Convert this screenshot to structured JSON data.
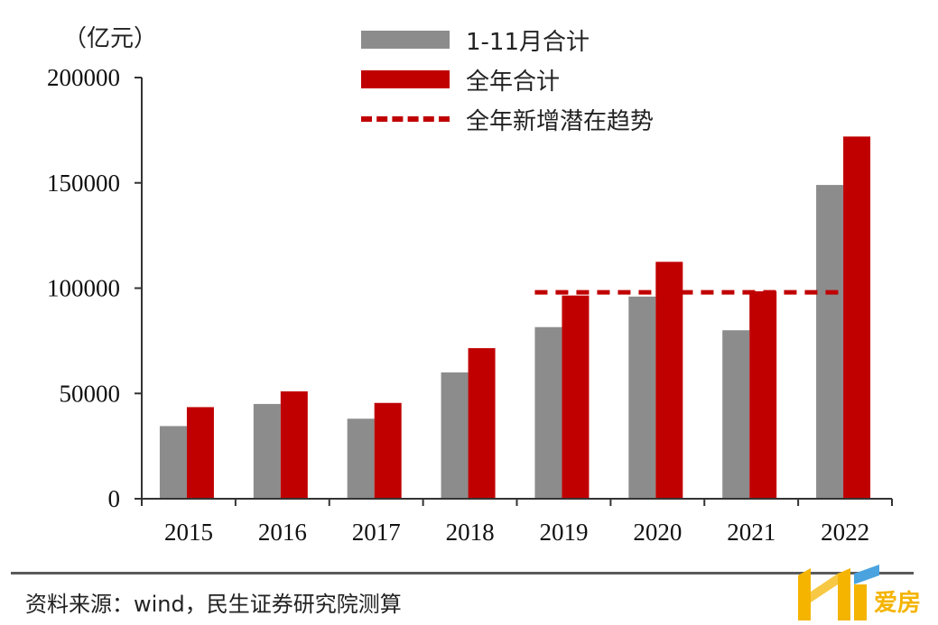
{
  "chart_data": {
    "type": "bar",
    "unit_label": "（亿元）",
    "categories": [
      "2015",
      "2016",
      "2017",
      "2018",
      "2019",
      "2020",
      "2021",
      "2022"
    ],
    "series": [
      {
        "name": "1-11月合计",
        "values": [
          34500,
          45000,
          38000,
          60000,
          81500,
          96000,
          80000,
          149000
        ],
        "color": "#8c8c8c"
      },
      {
        "name": "全年合计",
        "values": [
          43500,
          51000,
          45500,
          71500,
          96500,
          112500,
          98500,
          172000
        ],
        "color": "#c00000"
      }
    ],
    "reference_line": {
      "name": "全年新增潜在趋势",
      "value": 98000,
      "from": "2019",
      "to": "2022",
      "style": "dashed",
      "color": "#c00000"
    },
    "ylim": [
      0,
      200000
    ],
    "yticks": [
      0,
      50000,
      100000,
      150000,
      200000
    ],
    "legend_position": "top-center",
    "grid": false
  },
  "source_text": "资料来源：wind，民生证券研究院测算",
  "watermark": {
    "text": "爱房",
    "logo": "house-logo-icon"
  }
}
